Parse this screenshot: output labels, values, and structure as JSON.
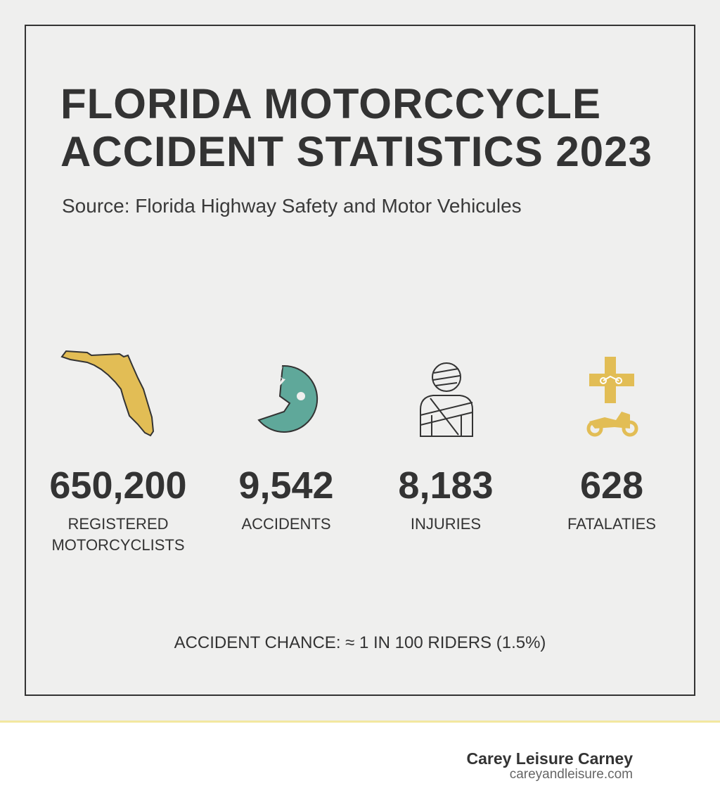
{
  "title": [
    "FLORIDA MOTORCCYCLE",
    "ACCIDENT STATISTICS 2023"
  ],
  "source": "Source: Florida Highway Safety and Motor Vehicules",
  "stats": [
    {
      "value": "650,200",
      "label": "REGISTERED MOTORCYCLISTS"
    },
    {
      "value": "9,542",
      "label": "ACCIDENTS"
    },
    {
      "value": "8,183",
      "label": "INJURIES"
    },
    {
      "value": "628",
      "label": "FATALATIES"
    }
  ],
  "note": "ACCIDENT CHANCE: ≈ 1 IN 100 RIDERS (1.5%)",
  "footer": {
    "brand": "Carey Leisure Carney",
    "url": "careyandleisure.com"
  }
}
